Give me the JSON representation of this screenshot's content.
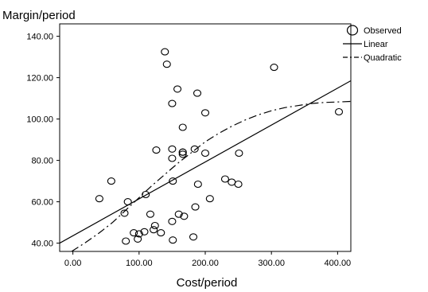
{
  "chart_data": {
    "type": "scatter",
    "ylabel": "Margin/period",
    "xlabel": "Cost/period",
    "xlim": [
      -20,
      420
    ],
    "ylim": [
      36,
      146
    ],
    "x_ticks": [
      0,
      100,
      200,
      300,
      400
    ],
    "x_tick_labels": [
      "0.00",
      "100.00",
      "200.00",
      "300.00",
      "400.00"
    ],
    "y_ticks": [
      40,
      60,
      80,
      100,
      120,
      140
    ],
    "y_tick_labels": [
      "40.00",
      "60.00",
      "80.00",
      "100.00",
      "120.00",
      "140.00"
    ],
    "grid": false,
    "legend_position": "top-right",
    "legend": [
      {
        "key": "observed",
        "label": "Observed",
        "marker": "circle"
      },
      {
        "key": "linear",
        "label": "Linear",
        "marker": "solid-line"
      },
      {
        "key": "quadratic",
        "label": "Quadratic",
        "marker": "dash-dot-line"
      }
    ],
    "series": [
      {
        "name": "Observed",
        "kind": "points",
        "points": [
          [
            40,
            61.5
          ],
          [
            58,
            70
          ],
          [
            78,
            54.5
          ],
          [
            80,
            41
          ],
          [
            83,
            60
          ],
          [
            92,
            45
          ],
          [
            98,
            42
          ],
          [
            100,
            44.5
          ],
          [
            108,
            45.5
          ],
          [
            110,
            63.5
          ],
          [
            117,
            54
          ],
          [
            122,
            46.5
          ],
          [
            124,
            48.5
          ],
          [
            126,
            85
          ],
          [
            133,
            45
          ],
          [
            139,
            132.5
          ],
          [
            142,
            126.5
          ],
          [
            150,
            107.5
          ],
          [
            150,
            85.5
          ],
          [
            150,
            81
          ],
          [
            150,
            50.5
          ],
          [
            151,
            70
          ],
          [
            151,
            41.5
          ],
          [
            158,
            114.5
          ],
          [
            160,
            54
          ],
          [
            166,
            84
          ],
          [
            166,
            84
          ],
          [
            166,
            83
          ],
          [
            166,
            96
          ],
          [
            168,
            53
          ],
          [
            182,
            43
          ],
          [
            184,
            85.5
          ],
          [
            185,
            57.5
          ],
          [
            188,
            112.5
          ],
          [
            189,
            68.5
          ],
          [
            200,
            103
          ],
          [
            200,
            83.5
          ],
          [
            207,
            61.5
          ],
          [
            230,
            71
          ],
          [
            240,
            69.5
          ],
          [
            250,
            68.5
          ],
          [
            251,
            83.5
          ],
          [
            304,
            125
          ],
          [
            402,
            103.5
          ]
        ]
      },
      {
        "name": "Linear",
        "kind": "line",
        "points": [
          [
            -20,
            40
          ],
          [
            420,
            118.5
          ]
        ]
      },
      {
        "name": "Quadratic",
        "kind": "dashdot",
        "points": [
          [
            -2,
            36
          ],
          [
            20,
            40.5
          ],
          [
            40,
            45
          ],
          [
            60,
            50
          ],
          [
            80,
            56
          ],
          [
            100,
            62
          ],
          [
            120,
            68
          ],
          [
            140,
            73.5
          ],
          [
            160,
            79
          ],
          [
            180,
            84
          ],
          [
            200,
            89
          ],
          [
            220,
            93
          ],
          [
            240,
            96.5
          ],
          [
            260,
            99.5
          ],
          [
            280,
            102
          ],
          [
            300,
            104
          ],
          [
            320,
            105.5
          ],
          [
            340,
            106.5
          ],
          [
            360,
            107.5
          ],
          [
            380,
            108
          ],
          [
            420,
            108.5
          ]
        ]
      }
    ]
  }
}
